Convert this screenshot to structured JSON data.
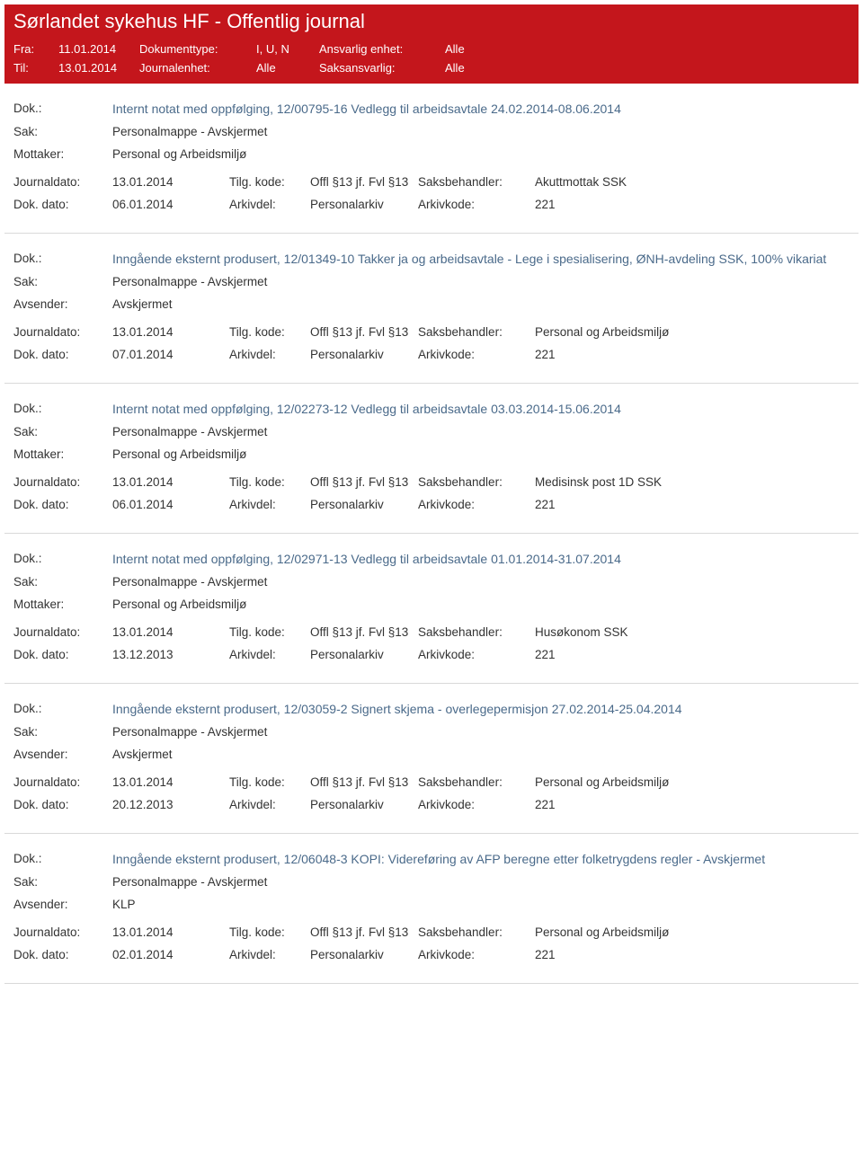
{
  "header": {
    "title": "Sørlandet sykehus HF - Offentlig journal",
    "fra_label": "Fra:",
    "fra_value": "11.01.2014",
    "til_label": "Til:",
    "til_value": "13.01.2014",
    "doktype_label": "Dokumenttype:",
    "doktype_value": "I, U, N",
    "journalenhet_label": "Journalenhet:",
    "journalenhet_value": "Alle",
    "ansvarlig_label": "Ansvarlig enhet:",
    "ansvarlig_value": "Alle",
    "saksansvarlig_label": "Saksansvarlig:",
    "saksansvarlig_value": "Alle"
  },
  "labels": {
    "dok": "Dok.:",
    "sak": "Sak:",
    "mottaker": "Mottaker:",
    "avsender": "Avsender:",
    "journaldato": "Journaldato:",
    "dokdato": "Dok. dato:",
    "tilgkode": "Tilg. kode:",
    "arkivdel": "Arkivdel:",
    "saksbehandler": "Saksbehandler:",
    "arkivkode": "Arkivkode:"
  },
  "entries": [
    {
      "dok": "Internt notat med oppfølging, 12/00795-16 Vedlegg til arbeidsavtale 24.02.2014-08.06.2014",
      "sak": "Personalmappe - Avskjermet",
      "party_label": "Mottaker:",
      "party_value": "Personal og Arbeidsmiljø",
      "journaldato": "13.01.2014",
      "tilgkode": "Offl §13 jf. Fvl §13",
      "saksbehandler": "Akuttmottak SSK",
      "dokdato": "06.01.2014",
      "arkivdel": "Personalarkiv",
      "arkivkode": "221"
    },
    {
      "dok": "Inngående eksternt produsert, 12/01349-10 Takker ja og arbeidsavtale - Lege i spesialisering, ØNH-avdeling SSK, 100% vikariat",
      "sak": "Personalmappe - Avskjermet",
      "party_label": "Avsender:",
      "party_value": "Avskjermet",
      "journaldato": "13.01.2014",
      "tilgkode": "Offl §13 jf. Fvl §13",
      "saksbehandler": "Personal og Arbeidsmiljø",
      "dokdato": "07.01.2014",
      "arkivdel": "Personalarkiv",
      "arkivkode": "221"
    },
    {
      "dok": "Internt notat med oppfølging, 12/02273-12 Vedlegg til arbeidsavtale 03.03.2014-15.06.2014",
      "sak": "Personalmappe - Avskjermet",
      "party_label": "Mottaker:",
      "party_value": "Personal og Arbeidsmiljø",
      "journaldato": "13.01.2014",
      "tilgkode": "Offl §13 jf. Fvl §13",
      "saksbehandler": "Medisinsk post 1D SSK",
      "dokdato": "06.01.2014",
      "arkivdel": "Personalarkiv",
      "arkivkode": "221"
    },
    {
      "dok": "Internt notat med oppfølging, 12/02971-13 Vedlegg til arbeidsavtale 01.01.2014-31.07.2014",
      "sak": "Personalmappe - Avskjermet",
      "party_label": "Mottaker:",
      "party_value": "Personal og Arbeidsmiljø",
      "journaldato": "13.01.2014",
      "tilgkode": "Offl §13 jf. Fvl §13",
      "saksbehandler": "Husøkonom SSK",
      "dokdato": "13.12.2013",
      "arkivdel": "Personalarkiv",
      "arkivkode": "221"
    },
    {
      "dok": "Inngående eksternt produsert, 12/03059-2 Signert skjema - overlegepermisjon 27.02.2014-25.04.2014",
      "sak": "Personalmappe - Avskjermet",
      "party_label": "Avsender:",
      "party_value": "Avskjermet",
      "journaldato": "13.01.2014",
      "tilgkode": "Offl §13 jf. Fvl §13",
      "saksbehandler": "Personal og Arbeidsmiljø",
      "dokdato": "20.12.2013",
      "arkivdel": "Personalarkiv",
      "arkivkode": "221"
    },
    {
      "dok": "Inngående eksternt produsert, 12/06048-3 KOPI: Videreføring av AFP beregne etter folketrygdens regler - Avskjermet",
      "sak": "Personalmappe - Avskjermet",
      "party_label": "Avsender:",
      "party_value": "KLP",
      "journaldato": "13.01.2014",
      "tilgkode": "Offl §13 jf. Fvl §13",
      "saksbehandler": "Personal og Arbeidsmiljø",
      "dokdato": "02.01.2014",
      "arkivdel": "Personalarkiv",
      "arkivkode": "221"
    }
  ]
}
